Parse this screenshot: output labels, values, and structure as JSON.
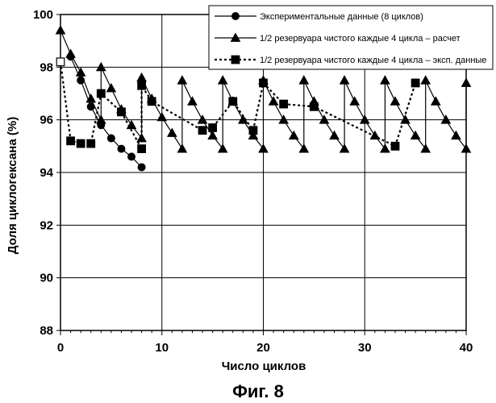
{
  "figure_caption": "Фиг. 8",
  "chart_data": {
    "type": "line",
    "xlabel": "Число циклов",
    "ylabel": "Доля циклогексана (%)",
    "xlim": [
      0,
      40
    ],
    "ylim": [
      88,
      100
    ],
    "x_ticks": [
      0,
      10,
      20,
      30,
      40
    ],
    "y_ticks": [
      88,
      90,
      92,
      94,
      96,
      98,
      100
    ],
    "grid": true,
    "legend_position": "top-right",
    "series": [
      {
        "name": "Экспериментальные данные (8 циклов)",
        "marker": "circle",
        "line_style": "solid",
        "x": [
          1,
          2,
          3,
          4,
          5,
          6,
          7,
          8
        ],
        "y": [
          98.4,
          97.5,
          96.5,
          95.8,
          95.3,
          94.9,
          94.6,
          94.2
        ]
      },
      {
        "name": "1/2 резервуара чистого каждые 4 цикла – расчет",
        "marker": "triangle",
        "line_style": "solid",
        "x": [
          0,
          1,
          2,
          3,
          4,
          4,
          5,
          6,
          7,
          8,
          8,
          9,
          10,
          11,
          12,
          12,
          13,
          14,
          15,
          16,
          16,
          17,
          18,
          19,
          20,
          20,
          21,
          22,
          23,
          24,
          24,
          25,
          26,
          27,
          28,
          28,
          29,
          30,
          31,
          32,
          32,
          33,
          34,
          35,
          36,
          36,
          37,
          38,
          39,
          40,
          40
        ],
        "y": [
          99.4,
          98.5,
          97.8,
          96.8,
          96.0,
          98.0,
          97.2,
          96.4,
          95.8,
          95.3,
          97.6,
          96.8,
          96.1,
          95.5,
          94.9,
          97.5,
          96.7,
          96.0,
          95.4,
          94.9,
          97.5,
          96.7,
          96.0,
          95.4,
          94.9,
          97.5,
          96.7,
          96.0,
          95.4,
          94.9,
          97.5,
          96.7,
          96.0,
          95.4,
          94.9,
          97.5,
          96.7,
          96.0,
          95.4,
          94.9,
          97.5,
          96.7,
          96.0,
          95.4,
          94.9,
          97.5,
          96.7,
          96.0,
          95.4,
          94.9,
          97.4
        ]
      },
      {
        "name": "1/2 резервуара чистого каждые 4 цикла – эксп. данные",
        "marker": "square",
        "line_style": "dashed",
        "x": [
          0,
          1,
          2,
          3,
          4,
          6,
          8,
          8,
          9,
          14,
          15,
          17,
          19,
          20,
          22,
          25,
          33,
          35
        ],
        "y": [
          98.2,
          95.2,
          95.1,
          95.1,
          97.0,
          96.3,
          94.9,
          97.3,
          96.7,
          95.6,
          95.7,
          96.7,
          95.6,
          97.4,
          96.6,
          96.5,
          95.0,
          97.4
        ]
      }
    ]
  }
}
